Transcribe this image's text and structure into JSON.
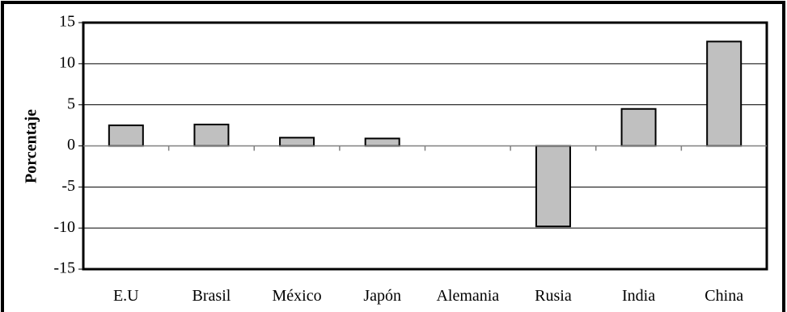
{
  "chart_data": {
    "type": "bar",
    "title": "",
    "xlabel": "",
    "ylabel": "Porcentaje",
    "categories": [
      "E.U",
      "Brasil",
      "México",
      "Japón",
      "Alemania",
      "Rusia",
      "India",
      "China"
    ],
    "values": [
      2.5,
      2.6,
      1.0,
      0.9,
      0.0,
      -9.8,
      4.5,
      12.7
    ],
    "ylim": [
      -15,
      15
    ],
    "yticks": [
      15,
      10,
      5,
      0,
      -5,
      -10,
      -15
    ],
    "ytick_labels": [
      "15",
      "10",
      "5",
      "0",
      "-5",
      "-10",
      "-15"
    ],
    "grid": true,
    "legend": "none",
    "colors": {
      "bar_fill": "#c0c0c0",
      "bar_stroke": "#000000",
      "frame": "#000000"
    }
  }
}
